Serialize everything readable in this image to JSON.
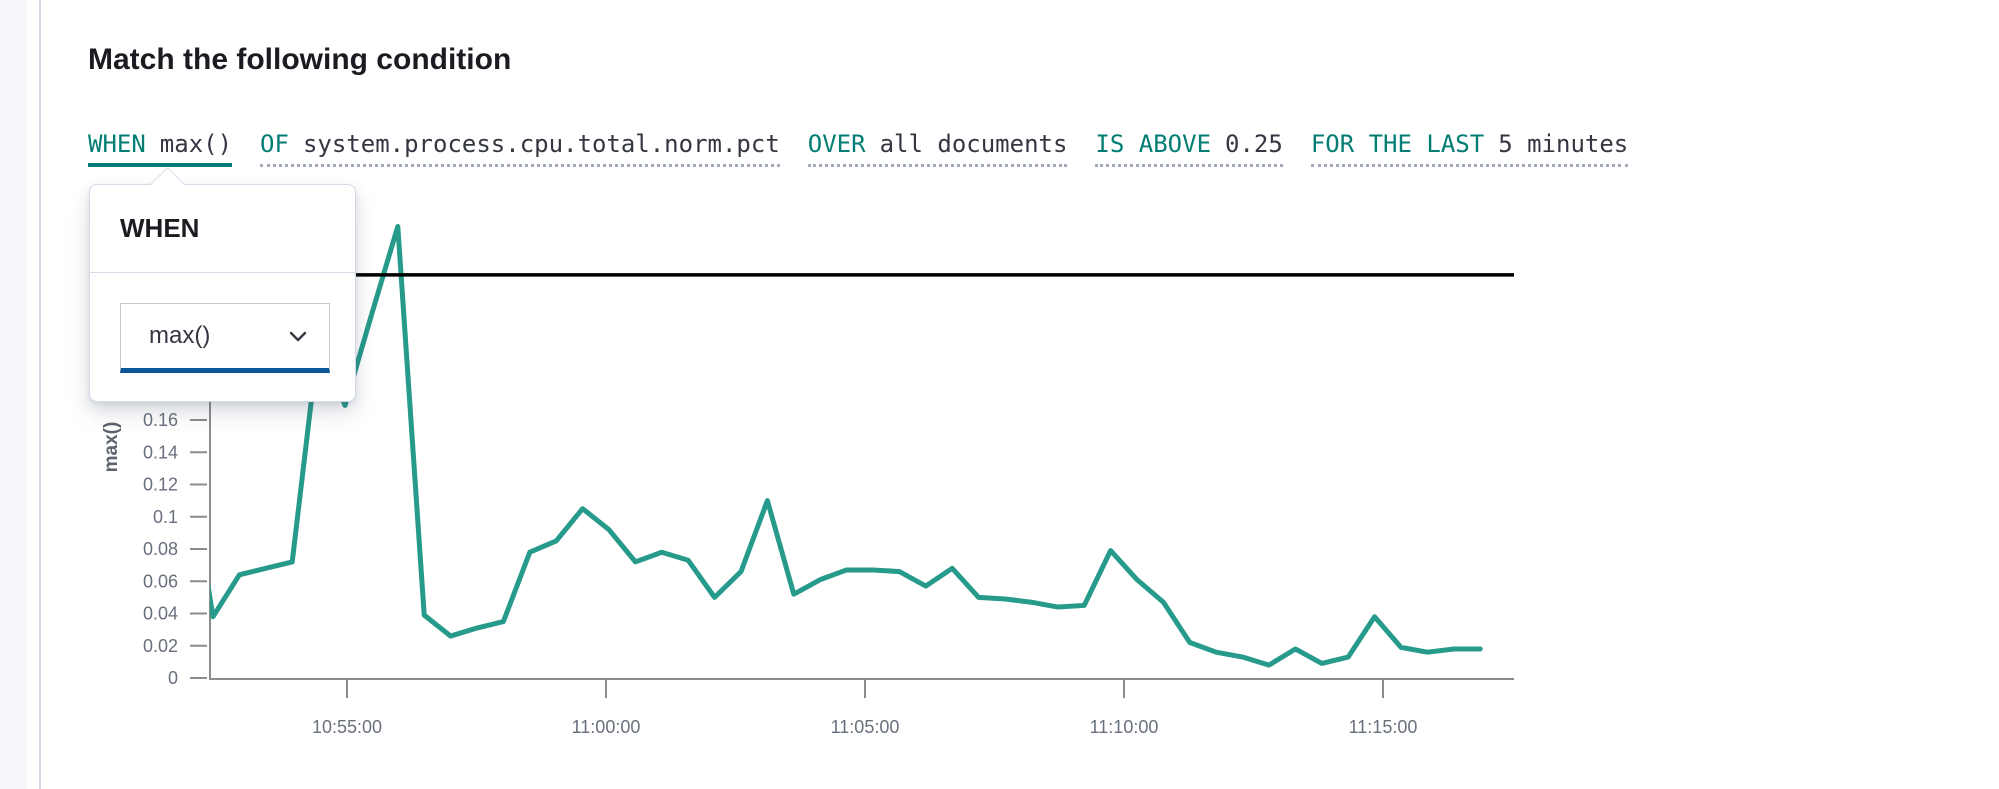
{
  "panel": {
    "title": "Match the following condition"
  },
  "expression": {
    "segments": [
      {
        "keyword": "WHEN",
        "value": "max()",
        "state": "active"
      },
      {
        "keyword": "OF",
        "value": "system.process.cpu.total.norm.pct",
        "state": "inactive"
      },
      {
        "keyword": "OVER",
        "value": "all documents",
        "state": "inactive"
      },
      {
        "keyword": "IS ABOVE",
        "value": "0.25",
        "state": "inactive"
      },
      {
        "keyword": "FOR THE LAST",
        "value": "5 minutes",
        "state": "inactive"
      }
    ]
  },
  "popover": {
    "title": "WHEN",
    "aggregation_select": {
      "value": "max()",
      "icon": "chevron-down"
    }
  },
  "colors": {
    "keyword_teal": "#017D73",
    "text_dark": "#343741",
    "title_dark": "#1a1c21",
    "chart_line": "#269a8b",
    "threshold_black": "#000000",
    "select_underline_blue": "#0b5697",
    "axis_gray": "#8c8c8c",
    "tick_label_gray": "#69707D",
    "panel_border": "#d3dae6"
  },
  "chart_data": {
    "type": "line",
    "title": "",
    "xlabel": "",
    "ylabel": "max()",
    "grid": false,
    "legend": false,
    "ylim": [
      0,
      0.3
    ],
    "y_tick_labels": [
      0,
      0.02,
      0.04,
      0.06,
      0.08,
      0.1,
      0.12,
      0.14,
      0.16
    ],
    "x_tick_labels": [
      "10:55:00",
      "11:00:00",
      "11:05:00",
      "11:10:00",
      "11:15:00"
    ],
    "threshold_value": 0.25,
    "series": [
      {
        "name": "max()",
        "x_start": "10:52:00",
        "x_interval_seconds": 30,
        "values": [
          0.14,
          0.038,
          0.064,
          0.068,
          0.072,
          0.21,
          0.169,
          0.225,
          0.28,
          0.039,
          0.026,
          0.031,
          0.035,
          0.078,
          0.085,
          0.105,
          0.092,
          0.072,
          0.078,
          0.073,
          0.05,
          0.066,
          0.11,
          0.052,
          0.061,
          0.067,
          0.067,
          0.066,
          0.057,
          0.068,
          0.05,
          0.049,
          0.047,
          0.044,
          0.045,
          0.079,
          0.061,
          0.047,
          0.022,
          0.016,
          0.013,
          0.008,
          0.018,
          0.009,
          0.013,
          0.038,
          0.019,
          0.016,
          0.018,
          0.018
        ]
      }
    ]
  }
}
